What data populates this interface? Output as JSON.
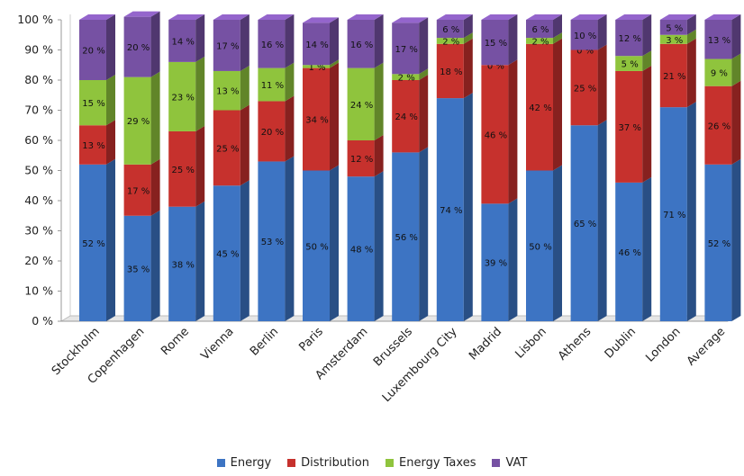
{
  "chart_data": {
    "type": "bar",
    "stacked": true,
    "percent": true,
    "three_d": true,
    "categories": [
      "Stockholm",
      "Copenhagen",
      "Rome",
      "Vienna",
      "Berlin",
      "Paris",
      "Amsterdam",
      "Brussels",
      "Luxembourg City",
      "Madrid",
      "Lisbon",
      "Athens",
      "Dublin",
      "London",
      "Average"
    ],
    "series": [
      {
        "name": "Energy",
        "color": "#3d74c3",
        "values": [
          52,
          35,
          38,
          45,
          53,
          50,
          48,
          56,
          74,
          39,
          50,
          65,
          46,
          71,
          52
        ]
      },
      {
        "name": "Distribution",
        "color": "#c6312d",
        "values": [
          13,
          17,
          25,
          25,
          20,
          34,
          12,
          24,
          18,
          46,
          42,
          25,
          37,
          21,
          26
        ]
      },
      {
        "name": "Energy Taxes",
        "color": "#8fc43d",
        "values": [
          15,
          29,
          23,
          13,
          11,
          1,
          24,
          2,
          2,
          0,
          2,
          0,
          5,
          3,
          9
        ]
      },
      {
        "name": "VAT",
        "color": "#7651a3",
        "values": [
          20,
          20,
          14,
          17,
          16,
          14,
          16,
          17,
          6,
          15,
          6,
          10,
          12,
          5,
          13
        ]
      }
    ],
    "ylim": [
      0,
      100
    ],
    "y_ticks": [
      "0 %",
      "10 %",
      "20 %",
      "30 %",
      "40 %",
      "50 %",
      "60 %",
      "70 %",
      "80 %",
      "90 %",
      "100 %"
    ],
    "grid": false,
    "legend": "bottom"
  },
  "legend": [
    {
      "label": "Energy",
      "color": "#3d74c3"
    },
    {
      "label": "Distribution",
      "color": "#c6312d"
    },
    {
      "label": "Energy Taxes",
      "color": "#8fc43d"
    },
    {
      "label": "VAT",
      "color": "#7651a3"
    }
  ]
}
